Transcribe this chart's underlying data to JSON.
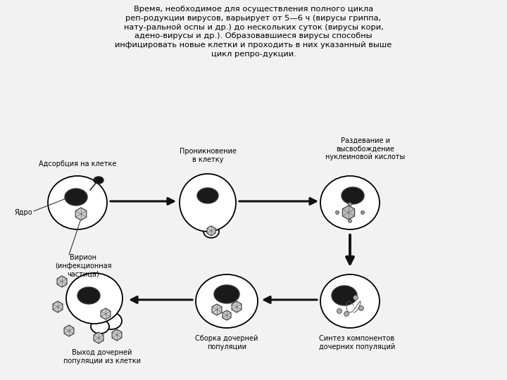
{
  "bg_color": "#e8e8e8",
  "inner_bg": "#f2f2f2",
  "text_color": "#000000",
  "title_text": "Время, необходимое для осуществления полного цикла\nреп-родукции вирусов, варьирует от 5—6 ч (вирусы гриппа,\nнату-ральной оспы и др.) до нескольких суток (вирусы кори,\nадено-вирусы и др.). Образовавшиеся вирусы способны\nинфицировать новые клетки и проходить в них указанный выше\nцикл репро-дукции.",
  "label_adsorb": "Адсорбция на клетке",
  "label_penetr": "Проникновение\nв клетку",
  "label_strip": "Раздевание и\nвысвобождение\nнуклеиновой кислоты",
  "label_synth": "Синтез компонентов\nдочерних популяций",
  "label_assembly": "Сборка дочерней\nпопуляции",
  "label_exit": "Выход дочерней\nпопуляции из клетки",
  "label_nucleus": "Ядро",
  "label_virion": "Вирион\n(инфекционная\nчастица)",
  "cell_color": "#ffffff",
  "cell_edge": "#000000",
  "nucleus_dark": "#1a1a1a",
  "arrow_color": "#111111",
  "title_fontsize": 8.2,
  "label_fontsize": 7.0
}
